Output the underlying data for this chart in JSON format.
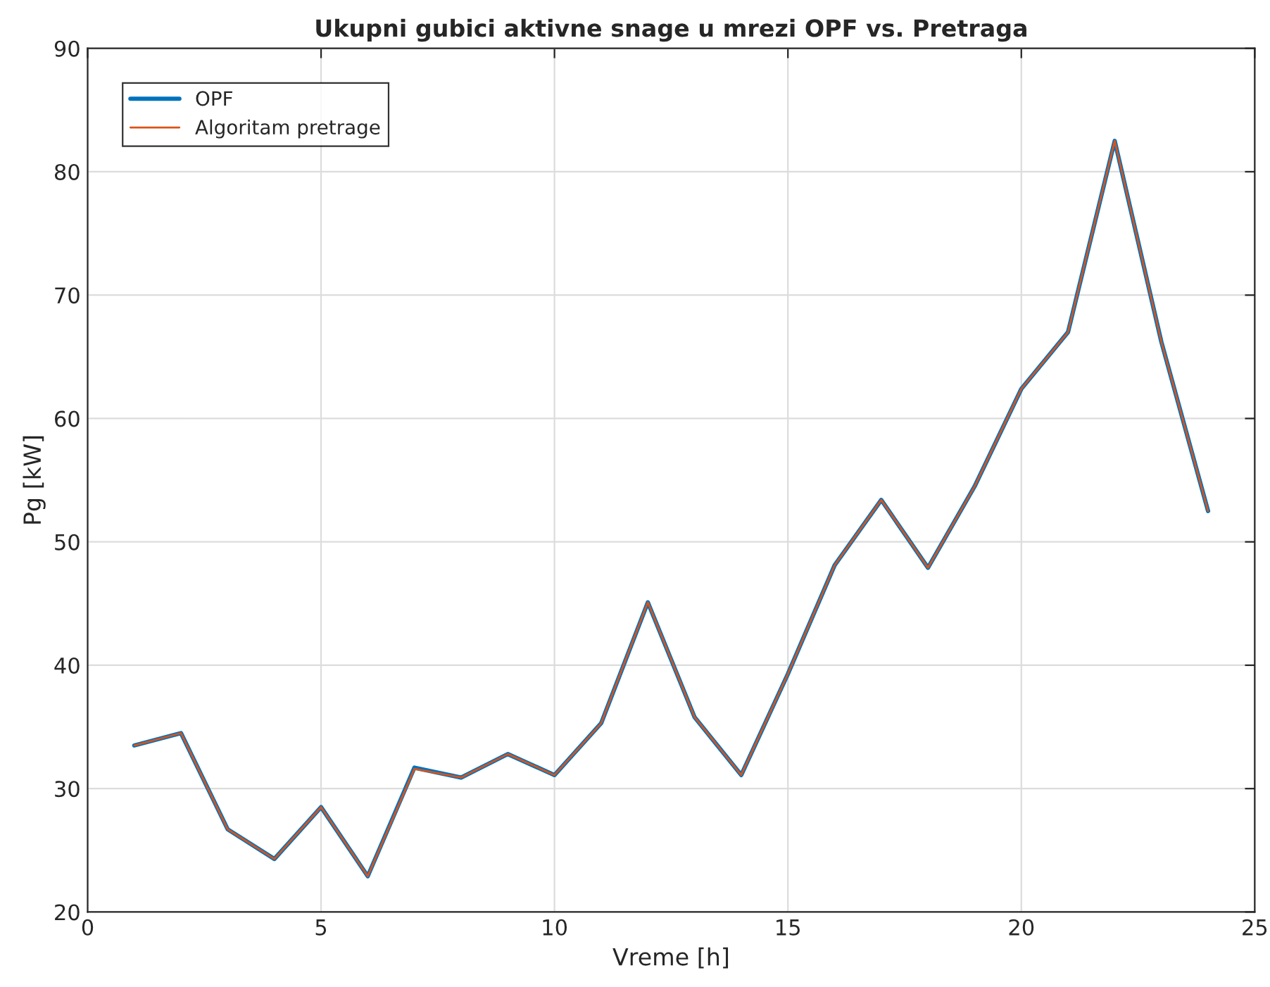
{
  "chart_data": {
    "type": "line",
    "title": "Ukupni gubici aktivne snage u mrezi OPF vs. Pretraga",
    "xlabel": "Vreme [h]",
    "ylabel": "Pg [kW]",
    "x": [
      1,
      2,
      3,
      4,
      5,
      6,
      7,
      8,
      9,
      10,
      11,
      12,
      13,
      14,
      15,
      16,
      17,
      18,
      19,
      20,
      21,
      22,
      23,
      24
    ],
    "series": [
      {
        "name": "OPF",
        "color": "#0072bd",
        "values": [
          33.5,
          34.5,
          26.7,
          24.3,
          28.5,
          22.9,
          31.7,
          30.9,
          32.8,
          31.1,
          35.3,
          45.1,
          35.8,
          31.1,
          39.3,
          48.1,
          53.4,
          47.9,
          54.5,
          62.4,
          67.0,
          82.5,
          66.2,
          52.5
        ]
      },
      {
        "name": "Algoritam pretrage",
        "color": "#d95319",
        "values": [
          33.5,
          34.5,
          26.7,
          24.3,
          28.5,
          22.9,
          31.6,
          30.9,
          32.8,
          31.1,
          35.3,
          45.1,
          35.8,
          31.1,
          39.3,
          48.1,
          53.4,
          47.9,
          54.5,
          62.4,
          67.0,
          82.5,
          66.2,
          52.5
        ]
      }
    ],
    "xlim": [
      0,
      25
    ],
    "xticks": [
      0,
      5,
      10,
      15,
      20,
      25
    ],
    "ylim": [
      20,
      90
    ],
    "yticks": [
      20,
      30,
      40,
      50,
      60,
      70,
      80,
      90
    ],
    "grid": true,
    "legend": "top left",
    "line_style": "solid"
  }
}
